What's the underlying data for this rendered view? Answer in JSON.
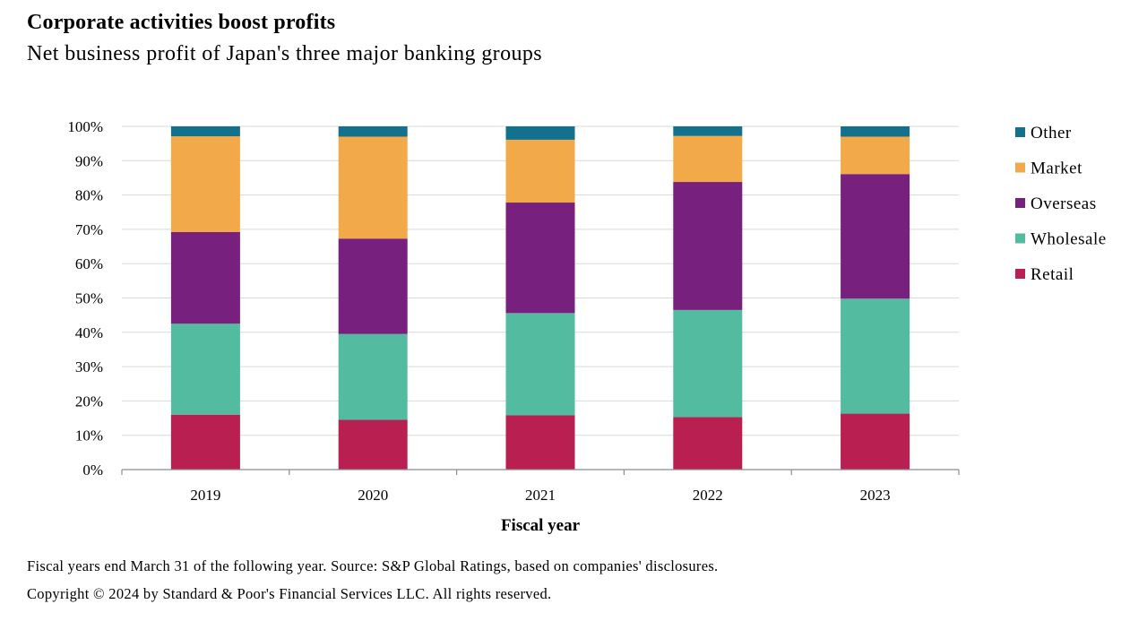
{
  "header": {
    "title": "Corporate activities boost profits",
    "subtitle": "Net business profit of Japan's three major banking groups"
  },
  "footer": {
    "note": "Fiscal years end March 31 of the following year.  Source: S&P Global Ratings, based on companies' disclosures.",
    "copyright": "Copyright © 2024 by Standard & Poor's Financial Services LLC. All rights reserved."
  },
  "chart_data": {
    "type": "bar",
    "stacked": true,
    "categories": [
      "2019",
      "2020",
      "2021",
      "2022",
      "2023"
    ],
    "xlabel": "Fiscal year",
    "ylabel": "",
    "ylim": [
      0,
      100
    ],
    "yticks": [
      "0%",
      "10%",
      "20%",
      "30%",
      "40%",
      "50%",
      "60%",
      "70%",
      "80%",
      "90%",
      "100%"
    ],
    "grid": true,
    "legend_position": "right",
    "series": [
      {
        "name": "Retail",
        "color": "#B91F51",
        "values": [
          16,
          14.5,
          15.8,
          15.3,
          16.3
        ]
      },
      {
        "name": "Wholesale",
        "color": "#52BBA0",
        "values": [
          26.5,
          25,
          29.8,
          31.2,
          33.5
        ]
      },
      {
        "name": "Overseas",
        "color": "#78207D",
        "values": [
          26.7,
          27.8,
          32.2,
          37.3,
          36.3
        ]
      },
      {
        "name": "Market",
        "color": "#F2A94A",
        "values": [
          27.9,
          29.7,
          18.3,
          13.4,
          10.9
        ]
      },
      {
        "name": "Other",
        "color": "#13718E",
        "values": [
          2.9,
          3.0,
          3.9,
          2.8,
          3.0
        ]
      }
    ]
  }
}
